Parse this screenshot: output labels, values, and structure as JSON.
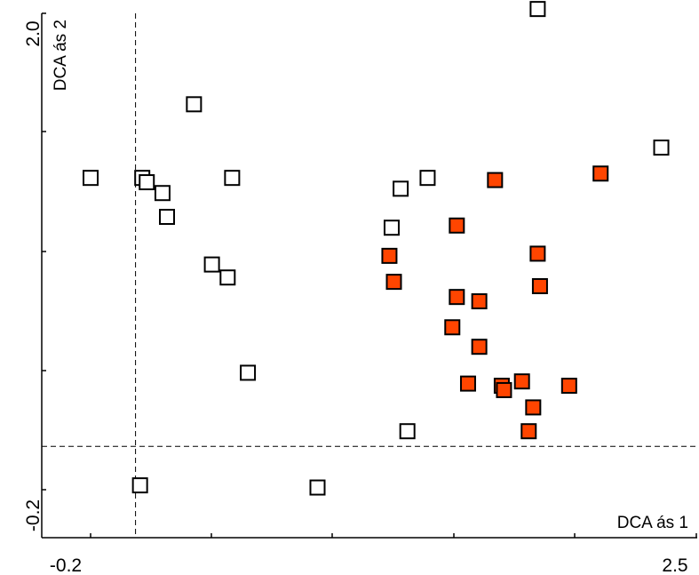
{
  "chart_data": {
    "type": "scatter",
    "xlabel": "DCA ás 1",
    "ylabel": "DCA ás 2",
    "xlim": [
      -0.2,
      2.5
    ],
    "ylim": [
      -0.2,
      2.0
    ],
    "x_tick_labels": [
      "-0.2",
      "2.5"
    ],
    "y_tick_labels": [
      "-0.2",
      "2.0"
    ],
    "reference_lines": {
      "x": 0.0,
      "y": 0.0
    },
    "grid": false,
    "legend": "none",
    "series": [
      {
        "marker": "open-square",
        "color": "#ffffff",
        "edgecolor": "#000000",
        "points": [
          {
            "x": -0.2,
            "y": 1.24
          },
          {
            "x": 0.02,
            "y": -0.18
          },
          {
            "x": 0.03,
            "y": 1.24
          },
          {
            "x": 0.05,
            "y": 1.22
          },
          {
            "x": 0.14,
            "y": 1.06
          },
          {
            "x": 0.12,
            "y": 1.17
          },
          {
            "x": 0.26,
            "y": 1.58
          },
          {
            "x": 0.34,
            "y": 0.84
          },
          {
            "x": 0.41,
            "y": 0.78
          },
          {
            "x": 0.43,
            "y": 1.24
          },
          {
            "x": 0.5,
            "y": 0.34
          },
          {
            "x": 0.81,
            "y": -0.19
          },
          {
            "x": 1.14,
            "y": 1.01
          },
          {
            "x": 1.18,
            "y": 1.19
          },
          {
            "x": 1.21,
            "y": 0.07
          },
          {
            "x": 1.3,
            "y": 1.24
          },
          {
            "x": 1.79,
            "y": 2.02
          },
          {
            "x": 2.34,
            "y": 1.38
          }
        ]
      },
      {
        "marker": "filled-square",
        "color": "#ff4500",
        "edgecolor": "#000000",
        "points": [
          {
            "x": 1.13,
            "y": 0.88
          },
          {
            "x": 1.15,
            "y": 0.76
          },
          {
            "x": 1.41,
            "y": 0.55
          },
          {
            "x": 1.43,
            "y": 1.02
          },
          {
            "x": 1.43,
            "y": 0.69
          },
          {
            "x": 1.53,
            "y": 0.46
          },
          {
            "x": 1.53,
            "y": 0.67
          },
          {
            "x": 1.48,
            "y": 0.29
          },
          {
            "x": 1.6,
            "y": 1.23
          },
          {
            "x": 1.63,
            "y": 0.28
          },
          {
            "x": 1.64,
            "y": 0.26
          },
          {
            "x": 1.72,
            "y": 0.3
          },
          {
            "x": 1.75,
            "y": 0.07
          },
          {
            "x": 1.77,
            "y": 0.18
          },
          {
            "x": 1.79,
            "y": 0.89
          },
          {
            "x": 1.8,
            "y": 0.74
          },
          {
            "x": 2.07,
            "y": 1.26
          },
          {
            "x": 1.93,
            "y": 0.28
          }
        ]
      }
    ]
  }
}
